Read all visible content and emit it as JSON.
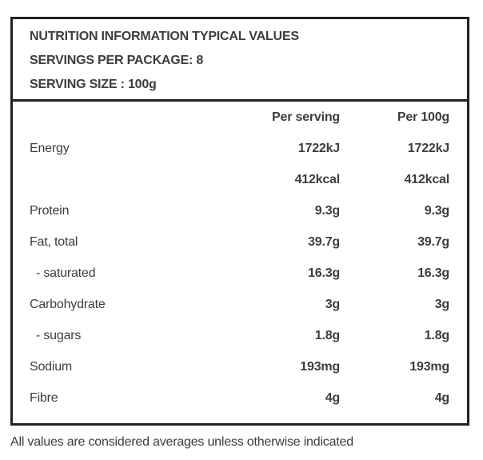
{
  "header": {
    "title": "NUTRITION INFORMATION TYPICAL VALUES",
    "servings_per_package": "SERVINGS PER PACKAGE: 8",
    "serving_size": "SERVING SIZE : 100g"
  },
  "table": {
    "columns": [
      "Per serving",
      "Per 100g"
    ],
    "rows": [
      {
        "label": "Energy",
        "per_serving": "1722kJ",
        "per_100g": "1722kJ",
        "indent": false
      },
      {
        "label": "",
        "per_serving": "412kcal",
        "per_100g": "412kcal",
        "indent": false
      },
      {
        "label": "Protein",
        "per_serving": "9.3g",
        "per_100g": "9.3g",
        "indent": false
      },
      {
        "label": "Fat, total",
        "per_serving": "39.7g",
        "per_100g": "39.7g",
        "indent": false
      },
      {
        "label": "- saturated",
        "per_serving": "16.3g",
        "per_100g": "16.3g",
        "indent": true
      },
      {
        "label": "Carbohydrate",
        "per_serving": "3g",
        "per_100g": "3g",
        "indent": false
      },
      {
        "label": "- sugars",
        "per_serving": "1.8g",
        "per_100g": "1.8g",
        "indent": true
      },
      {
        "label": "Sodium",
        "per_serving": "193mg",
        "per_100g": "193mg",
        "indent": false
      },
      {
        "label": "Fibre",
        "per_serving": "4g",
        "per_100g": "4g",
        "indent": false
      }
    ]
  },
  "footer": {
    "note": "All values are considered averages unless otherwise indicated"
  },
  "colors": {
    "text": "#3d3d3d",
    "border": "#222222",
    "background": "#ffffff"
  }
}
